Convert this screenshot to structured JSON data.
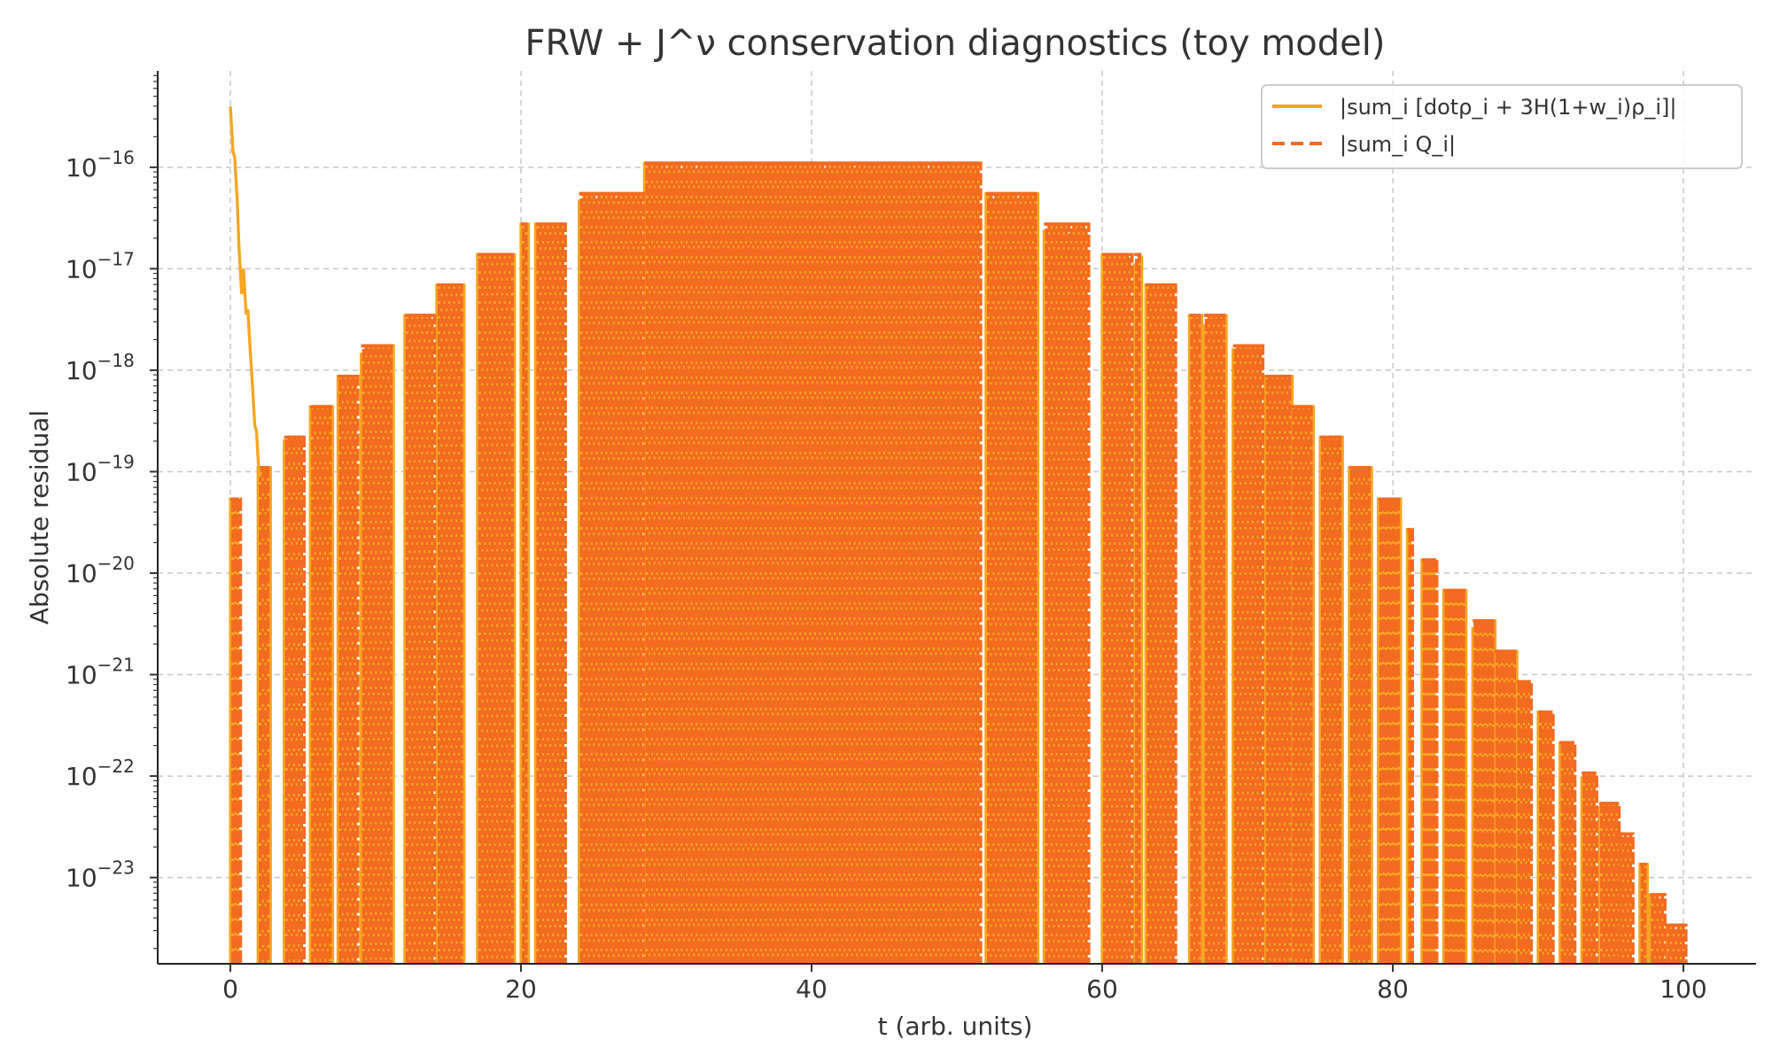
{
  "chart_data": {
    "type": "line",
    "title": "FRW + J^ν conservation diagnostics (toy model)",
    "xlabel": "t (arb. units)",
    "ylabel": "Absolute residual",
    "xlim": [
      -5,
      105
    ],
    "ylim_log10": [
      -23.85,
      -15.05
    ],
    "yscale": "log",
    "grid": true,
    "legend_position": "top-right",
    "x_ticks": [
      {
        "value": 0,
        "label": "0"
      },
      {
        "value": 20,
        "label": "20"
      },
      {
        "value": 40,
        "label": "40"
      },
      {
        "value": 60,
        "label": "60"
      },
      {
        "value": 80,
        "label": "80"
      },
      {
        "value": 100,
        "label": "100"
      }
    ],
    "y_ticks": [
      {
        "exp": -16,
        "base": "10",
        "sup": "−16"
      },
      {
        "exp": -17,
        "base": "10",
        "sup": "−17"
      },
      {
        "exp": -18,
        "base": "10",
        "sup": "−18"
      },
      {
        "exp": -19,
        "base": "10",
        "sup": "−19"
      },
      {
        "exp": -20,
        "base": "10",
        "sup": "−20"
      },
      {
        "exp": -21,
        "base": "10",
        "sup": "−21"
      },
      {
        "exp": -22,
        "base": "10",
        "sup": "−22"
      },
      {
        "exp": -23,
        "base": "10",
        "sup": "−23"
      }
    ],
    "series": [
      {
        "name": "|sum_i [dotρ_i + 3H(1+w_i)ρ_i]|",
        "color": "#f5a623",
        "style": "solid",
        "initial_decay": {
          "t": [
            0.0,
            0.3,
            0.6,
            0.9,
            1.2,
            1.5,
            1.8,
            2.1
          ],
          "log10": [
            -15.4,
            -15.9,
            -16.8,
            -17.0,
            -17.4,
            -18.1,
            -18.6,
            -19.0
          ]
        }
      },
      {
        "name": "|sum_i Q_i|",
        "color": "#f26b21",
        "style": "dashed"
      }
    ],
    "plateaus": [
      {
        "t0": 0.0,
        "t1": 0.6,
        "log10": -19.27
      },
      {
        "t0": 1.9,
        "t1": 2.6,
        "log10": -18.96
      },
      {
        "t0": 3.7,
        "t1": 5.0,
        "log10": -18.66
      },
      {
        "t0": 5.5,
        "t1": 7.0,
        "log10": -18.36
      },
      {
        "t0": 7.4,
        "t1": 8.6,
        "log10": -18.06
      },
      {
        "t0": 9.0,
        "t1": 11.2,
        "log10": -17.76
      },
      {
        "t0": 12.0,
        "t1": 14.0,
        "log10": -17.46
      },
      {
        "t0": 14.2,
        "t1": 16.0,
        "log10": -17.16
      },
      {
        "t0": 17.0,
        "t1": 19.5,
        "log10": -16.86
      },
      {
        "t0": 20.0,
        "t1": 20.4,
        "log10": -16.56
      },
      {
        "t0": 21.0,
        "t1": 23.0,
        "log10": -16.56
      },
      {
        "t0": 24.0,
        "t1": 28.3,
        "log10": -16.26
      },
      {
        "t0": 28.5,
        "t1": 51.6,
        "log10": -15.96
      },
      {
        "t0": 52.0,
        "t1": 55.4,
        "log10": -16.26
      },
      {
        "t0": 56.0,
        "t1": 59.0,
        "log10": -16.56
      },
      {
        "t0": 60.0,
        "t1": 62.0,
        "log10": -16.86
      },
      {
        "t0": 62.2,
        "t1": 62.7,
        "log10": -16.86
      },
      {
        "t0": 63.0,
        "t1": 65.0,
        "log10": -17.16
      },
      {
        "t0": 66.0,
        "t1": 66.8,
        "log10": -17.46
      },
      {
        "t0": 67.0,
        "t1": 68.5,
        "log10": -17.46
      },
      {
        "t0": 69.0,
        "t1": 71.0,
        "log10": -17.76
      },
      {
        "t0": 71.2,
        "t1": 73.0,
        "log10": -18.06
      },
      {
        "t0": 73.0,
        "t1": 74.5,
        "log10": -18.36
      },
      {
        "t0": 75.0,
        "t1": 76.5,
        "log10": -18.66
      },
      {
        "t0": 77.0,
        "t1": 78.5,
        "log10": -18.96
      },
      {
        "t0": 79.0,
        "t1": 80.5,
        "log10": -19.27
      },
      {
        "t0": 81.0,
        "t1": 81.3,
        "log10": -19.57
      },
      {
        "t0": 82.0,
        "t1": 83.0,
        "log10": -19.87
      },
      {
        "t0": 83.5,
        "t1": 85.0,
        "log10": -20.17
      },
      {
        "t0": 85.5,
        "t1": 87.0,
        "log10": -20.47
      },
      {
        "t0": 87.0,
        "t1": 88.5,
        "log10": -20.77
      },
      {
        "t0": 88.5,
        "t1": 89.5,
        "log10": -21.07
      },
      {
        "t0": 90.0,
        "t1": 91.0,
        "log10": -21.37
      },
      {
        "t0": 91.5,
        "t1": 92.5,
        "log10": -21.67
      },
      {
        "t0": 93.0,
        "t1": 94.0,
        "log10": -21.97
      },
      {
        "t0": 94.2,
        "t1": 95.5,
        "log10": -22.27
      },
      {
        "t0": 95.5,
        "t1": 96.5,
        "log10": -22.57
      },
      {
        "t0": 97.0,
        "t1": 97.5,
        "log10": -22.87
      },
      {
        "t0": 97.7,
        "t1": 98.7,
        "log10": -23.17
      },
      {
        "t0": 98.8,
        "t1": 100.0,
        "log10": -23.47
      }
    ]
  }
}
